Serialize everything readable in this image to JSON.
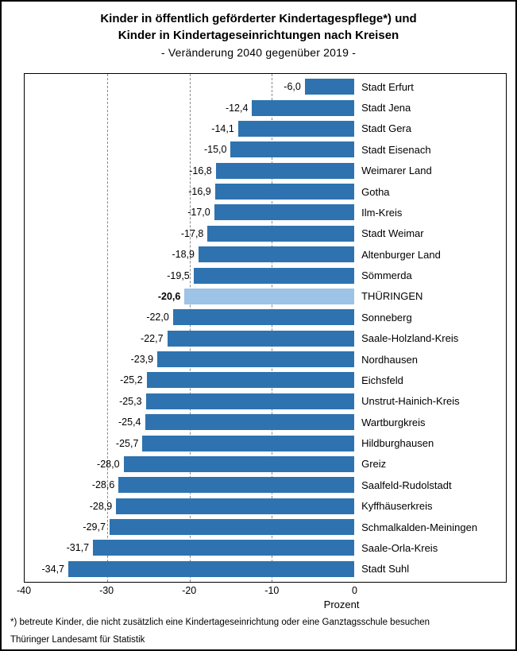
{
  "title": {
    "line1": "Kinder in öffentlich geförderter Kindertagespflege*) und",
    "line2": "Kinder in Kindertageseinrichtungen nach Kreisen",
    "subtitle": "- Veränderung 2040 gegenüber 2019 -"
  },
  "chart_data": {
    "type": "bar",
    "orientation": "horizontal",
    "title": "Kinder in öffentlich geförderter Kindertagespflege*) und Kinder in Kindertageseinrichtungen nach Kreisen - Veränderung 2040 gegenüber 2019 -",
    "categories": [
      "Stadt Erfurt",
      "Stadt Jena",
      "Stadt Gera",
      "Stadt Eisenach",
      "Weimarer Land",
      "Gotha",
      "Ilm-Kreis",
      "Stadt Weimar",
      "Altenburger Land",
      "Sömmerda",
      "THÜRINGEN",
      "Sonneberg",
      "Saale-Holzland-Kreis",
      "Nordhausen",
      "Eichsfeld",
      "Unstrut-Hainich-Kreis",
      "Wartburgkreis",
      "Hildburghausen",
      "Greiz",
      "Saalfeld-Rudolstadt",
      "Kyffhäuserkreis",
      "Schmalkalden-Meiningen",
      "Saale-Orla-Kreis",
      "Stadt Suhl"
    ],
    "values": [
      -6.0,
      -12.4,
      -14.1,
      -15.0,
      -16.8,
      -16.9,
      -17.0,
      -17.8,
      -18.9,
      -19.5,
      -20.6,
      -22.0,
      -22.7,
      -23.9,
      -25.2,
      -25.3,
      -25.4,
      -25.7,
      -28.0,
      -28.6,
      -28.9,
      -29.7,
      -31.7,
      -34.7
    ],
    "value_labels": [
      "-6,0",
      "-12,4",
      "-14,1",
      "-15,0",
      "-16,8",
      "-16,9",
      "-17,0",
      "-17,8",
      "-18,9",
      "-19,5",
      "-20,6",
      "-22,0",
      "-22,7",
      "-23,9",
      "-25,2",
      "-25,3",
      "-25,4",
      "-25,7",
      "-28,0",
      "-28,6",
      "-28,9",
      "-29,7",
      "-31,7",
      "-34,7"
    ],
    "highlight_category": "THÜRINGEN",
    "highlight_index": 10,
    "xlabel": "Prozent",
    "x_ticks": [
      "-40",
      "-30",
      "-20",
      "-10",
      "0"
    ],
    "xlim": [
      -40,
      0
    ],
    "grid": "dashed vertical gridlines at -30, -20, -10",
    "legend": "none",
    "bar_color": "#2e73b0",
    "highlight_color": "#9dc3e6",
    "gridline_color": "#8a8a8a"
  },
  "footnote": "*) betreute Kinder, die nicht zusätzlich eine Kindertageseinrichtung oder eine Ganztagsschule besuchen",
  "source": "Thüringer Landesamt für Statistik"
}
